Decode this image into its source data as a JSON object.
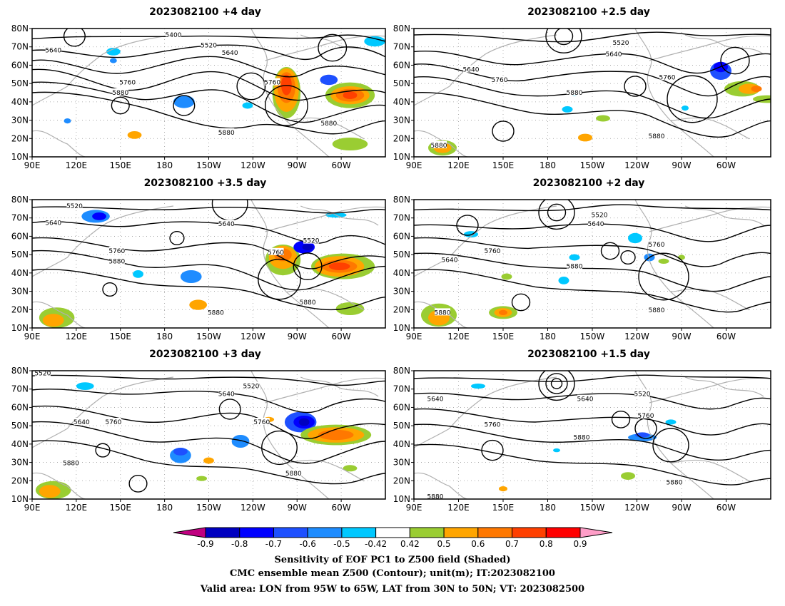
{
  "panels": [
    {
      "title": "2023082100 +4 day",
      "labels": [
        "5400",
        "5520",
        "5640",
        "5640",
        "5760",
        "5880",
        "5760",
        "5880",
        "5880"
      ]
    },
    {
      "title": "2023082100 +2.5 day",
      "labels": [
        "5520",
        "5640",
        "5640",
        "5760",
        "5760",
        "5880",
        "5880",
        "5880"
      ]
    },
    {
      "title": "2023082100 +3.5 day",
      "labels": [
        "5520",
        "5640",
        "5640",
        "5760",
        "5880",
        "5760",
        "5520",
        "5880",
        "5880"
      ]
    },
    {
      "title": "2023082100 +2 day",
      "labels": [
        "5520",
        "5640",
        "5640",
        "5760",
        "5880",
        "5760",
        "5880",
        "5880"
      ]
    },
    {
      "title": "2023082100 +3 day",
      "labels": [
        "5520",
        "5520",
        "5640",
        "5640",
        "5760",
        "5760",
        "5880",
        "5880"
      ]
    },
    {
      "title": "2023082100 +1.5 day",
      "labels": [
        "5640",
        "5640",
        "5520",
        "5760",
        "5760",
        "5880",
        "5880",
        "5880"
      ]
    }
  ],
  "axes": {
    "lon_ticks": [
      "90E",
      "120E",
      "150E",
      "180",
      "150W",
      "120W",
      "90W",
      "60W"
    ],
    "lat_ticks": [
      "10N",
      "20N",
      "30N",
      "40N",
      "50N",
      "60N",
      "70N",
      "80N"
    ]
  },
  "colorbar": {
    "ticks": [
      "-0.9",
      "-0.8",
      "-0.7",
      "-0.6",
      "-0.5",
      "-0.42",
      "0.42",
      "0.5",
      "0.6",
      "0.7",
      "0.8",
      "0.9"
    ],
    "colors": [
      "#c00080",
      "#0000c0",
      "#0000ff",
      "#1e50ff",
      "#1e8cff",
      "#00c8ff",
      "#ffffff",
      "#9acd32",
      "#ffa500",
      "#ff7800",
      "#ff4000",
      "#ff0000",
      "#ff9ec8"
    ]
  },
  "caption": [
    "Sensitivity of EOF PC1 to Z500 field (Shaded)",
    "CMC ensemble mean Z500 (Contour); unit(m); IT:2023082100",
    "Valid area: LON from 95W to 65W, LAT from 30N to 50N; VT: 2023082500"
  ]
}
